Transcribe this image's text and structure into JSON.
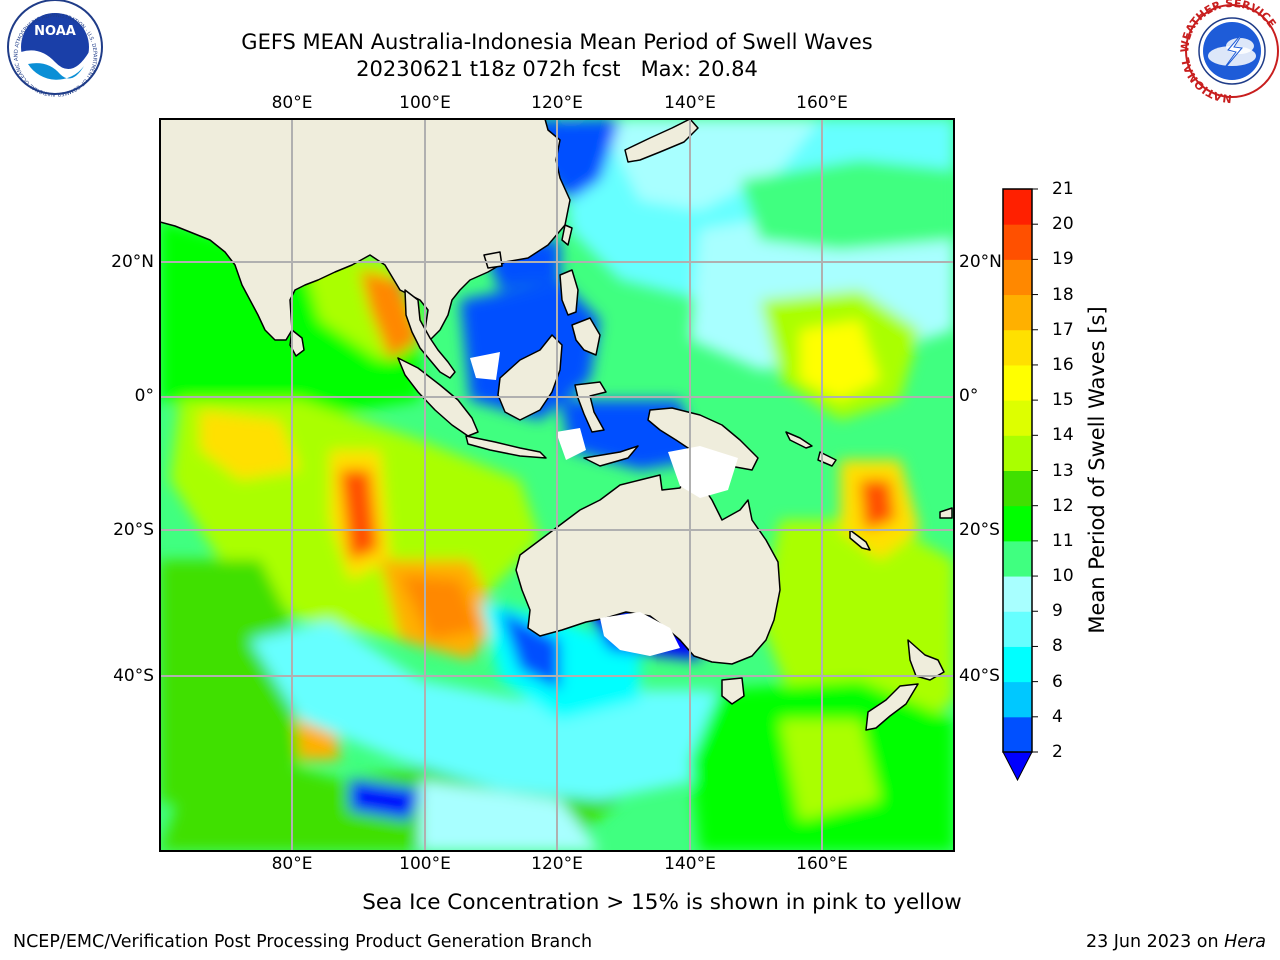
{
  "header": {
    "title_line1": "GEFS MEAN Australia-Indonesia Mean Period of Swell Waves",
    "title_line2": "20230621 t18z 072h fcst   Max: 20.84"
  },
  "logos": {
    "noaa": {
      "center_text": "NOAA",
      "ring_text": "NATIONAL OCEANIC AND ATMOSPHERIC ADMINISTRATION · U.S. DEPARTMENT OF COMMERCE"
    },
    "nws": {
      "ring_text": "NATIONAL WEATHER SERVICE"
    }
  },
  "map": {
    "projection": "PlateCarree",
    "lon_ticks": [
      "80°E",
      "100°E",
      "120°E",
      "140°E",
      "160°E"
    ],
    "lat_ticks": [
      "20°N",
      "0°",
      "20°S",
      "40°S"
    ],
    "gridlines": true,
    "land_color": "#efeddc"
  },
  "colorbar": {
    "label": "Mean Period of Swell Waves [s]",
    "ticks": [
      "2",
      "4",
      "6",
      "8",
      "9",
      "10",
      "11",
      "12",
      "13",
      "14",
      "15",
      "16",
      "17",
      "18",
      "19",
      "20",
      "21"
    ],
    "colors": [
      "#0050ff",
      "#00c8ff",
      "#00ffff",
      "#66ffff",
      "#a8ffff",
      "#40ff80",
      "#00ff00",
      "#40e000",
      "#aaff00",
      "#ddff00",
      "#ffff00",
      "#ffe000",
      "#ffb000",
      "#ff8800",
      "#ff5000",
      "#ff2000"
    ],
    "under_color": "#0000ff"
  },
  "notes": {
    "sea_ice": "Sea Ice Concentration > 15% is shown in pink to yellow",
    "credit": "NCEP/EMC/Verification Post Processing Product Generation Branch",
    "date": "23 Jun 2023 on ",
    "machine": "Hera"
  }
}
